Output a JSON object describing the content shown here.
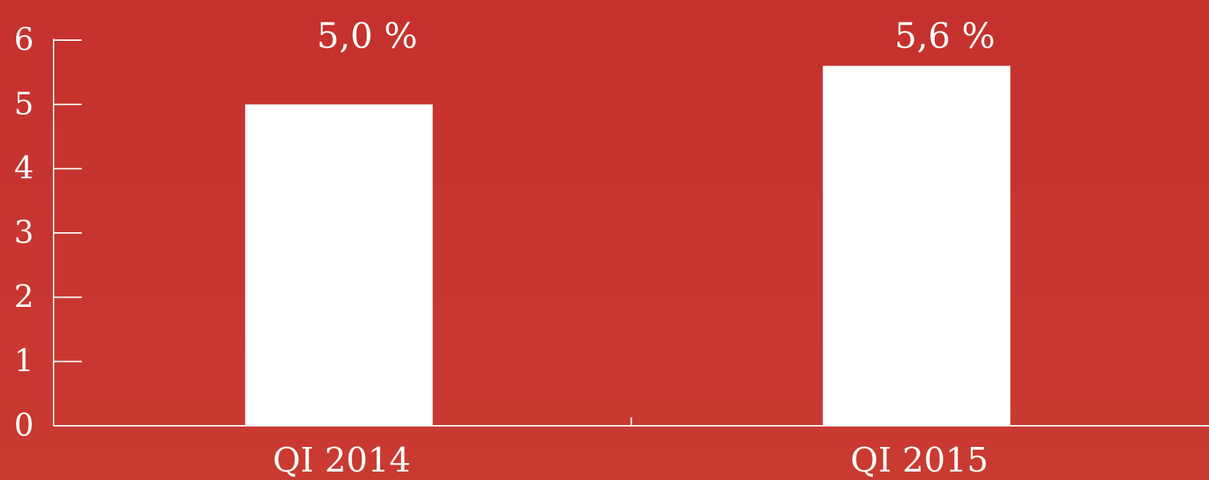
{
  "chart_data": {
    "type": "bar",
    "categories": [
      "QI 2014",
      "QI 2015"
    ],
    "values": [
      5.0,
      5.6
    ],
    "data_labels": [
      "5,0 %",
      "5,6 %"
    ],
    "y_ticks": [
      "0",
      "1",
      "2",
      "3",
      "4",
      "5",
      "6"
    ],
    "ylim": [
      0,
      6
    ],
    "grid": false,
    "legend": "none"
  },
  "colors": {
    "background": "#c8352f",
    "bar": "#ffffff",
    "axis": "#ffffff",
    "text": "#ffffff"
  }
}
